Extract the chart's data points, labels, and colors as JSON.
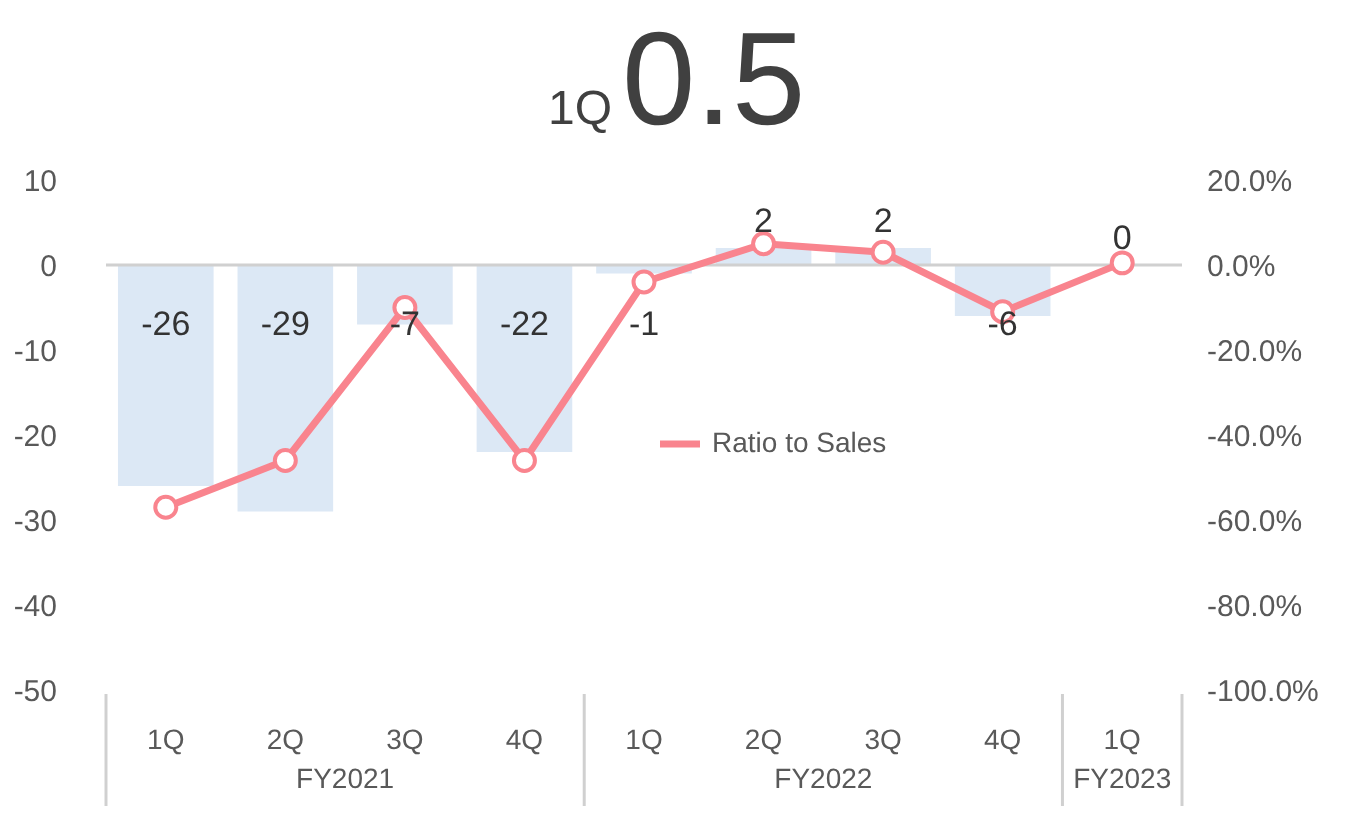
{
  "chart_data": {
    "type": "bar",
    "title": "1Q",
    "subtitle": "0.5",
    "categories": [
      "1Q",
      "2Q",
      "3Q",
      "4Q",
      "1Q",
      "2Q",
      "3Q",
      "4Q",
      "1Q"
    ],
    "annotations": [
      "FY2021",
      "FY2022",
      "FY2023"
    ],
    "series": [
      {
        "color": "#dce8f5",
        "values": [
          -26,
          -29,
          -7,
          -22,
          -1,
          2,
          2,
          -6,
          0
        ],
        "value_labels": [
          "-26",
          "-29",
          "-7",
          "-22",
          "-1",
          "2",
          "2",
          "-6",
          "0"
        ]
      },
      {
        "type": "line",
        "name": "Ratio to Sales",
        "axis": "y2",
        "color": "#f9848e",
        "marker": "circle",
        "values": [
          -57,
          -46,
          -10,
          -46,
          -4,
          5,
          3,
          -11,
          0.5
        ]
      }
    ],
    "ylim": [
      -50,
      10
    ],
    "yticks": [
      -50,
      -40,
      -30,
      -20,
      -10,
      0,
      10
    ],
    "y2lim": [
      -100,
      20
    ],
    "y2ticks": [
      {
        "value": -100,
        "label": "-100.0%"
      },
      {
        "value": -80,
        "label": "-80.0%"
      },
      {
        "value": -60,
        "label": "-60.0%"
      },
      {
        "value": -40,
        "label": "-40.0%"
      },
      {
        "value": -20,
        "label": "-20.0%"
      },
      {
        "value": 0,
        "label": "0.0%"
      },
      {
        "value": 20,
        "label": "20.0%"
      }
    ],
    "ref_lines": [
      {
        "axis": "y",
        "value": 0,
        "color": "#d0d0d0"
      }
    ],
    "grid": false,
    "legend": "bottom"
  }
}
